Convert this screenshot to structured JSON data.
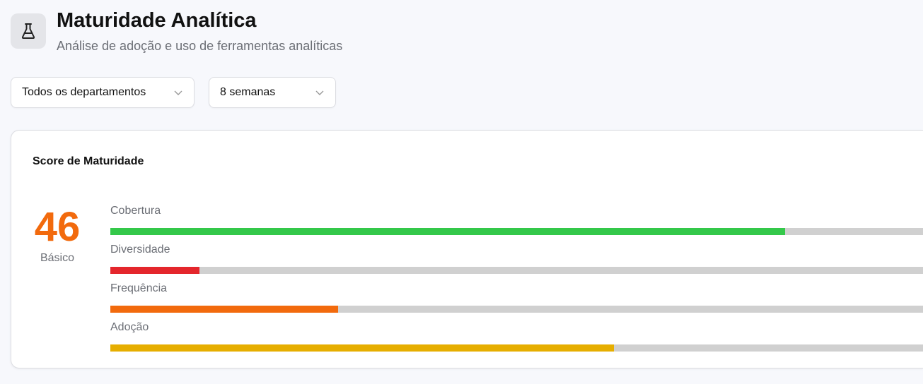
{
  "header": {
    "icon": "flask-icon",
    "title": "Maturidade Analítica",
    "subtitle": "Análise de adoção e uso de ferramentas analíticas"
  },
  "filters": {
    "department": "Todos os departamentos",
    "period": "8 semanas"
  },
  "card": {
    "title": "Score de Maturidade",
    "score": "46",
    "level": "Básico",
    "score_color": "#f26a0d",
    "metrics": [
      {
        "label": "Cobertura",
        "percent": 83,
        "color": "#34c84a"
      },
      {
        "label": "Diversidade",
        "percent": 11,
        "color": "#e4262c"
      },
      {
        "label": "Frequência",
        "percent": 28,
        "color": "#f26a0d"
      },
      {
        "label": "Adoção",
        "percent": 62,
        "color": "#e6ae00"
      }
    ]
  }
}
